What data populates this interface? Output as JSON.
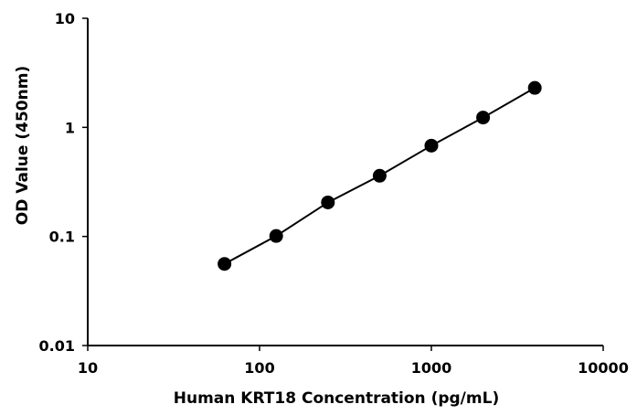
{
  "chart_data": {
    "type": "scatter",
    "title": "",
    "xlabel": "Human KRT18 Concentration (pg/mL)",
    "ylabel": "OD Value (450nm)",
    "xscale": "log",
    "yscale": "log",
    "xlim": [
      10,
      10000
    ],
    "ylim": [
      0.01,
      10
    ],
    "x_ticks": [
      10,
      100,
      1000,
      10000
    ],
    "y_ticks": [
      0.01,
      0.1,
      1,
      10
    ],
    "x_tick_labels": [
      "10",
      "100",
      "1000",
      "10000"
    ],
    "y_tick_labels": [
      "0.01",
      "0.1",
      "1",
      "10"
    ],
    "grid": false,
    "legend": "none",
    "series": [
      {
        "color": "#000000",
        "connected": true,
        "x": [
          62.5,
          125,
          250,
          500,
          1000,
          2000,
          4000
        ],
        "y": [
          0.056,
          0.101,
          0.205,
          0.36,
          0.68,
          1.23,
          2.3
        ]
      }
    ]
  }
}
